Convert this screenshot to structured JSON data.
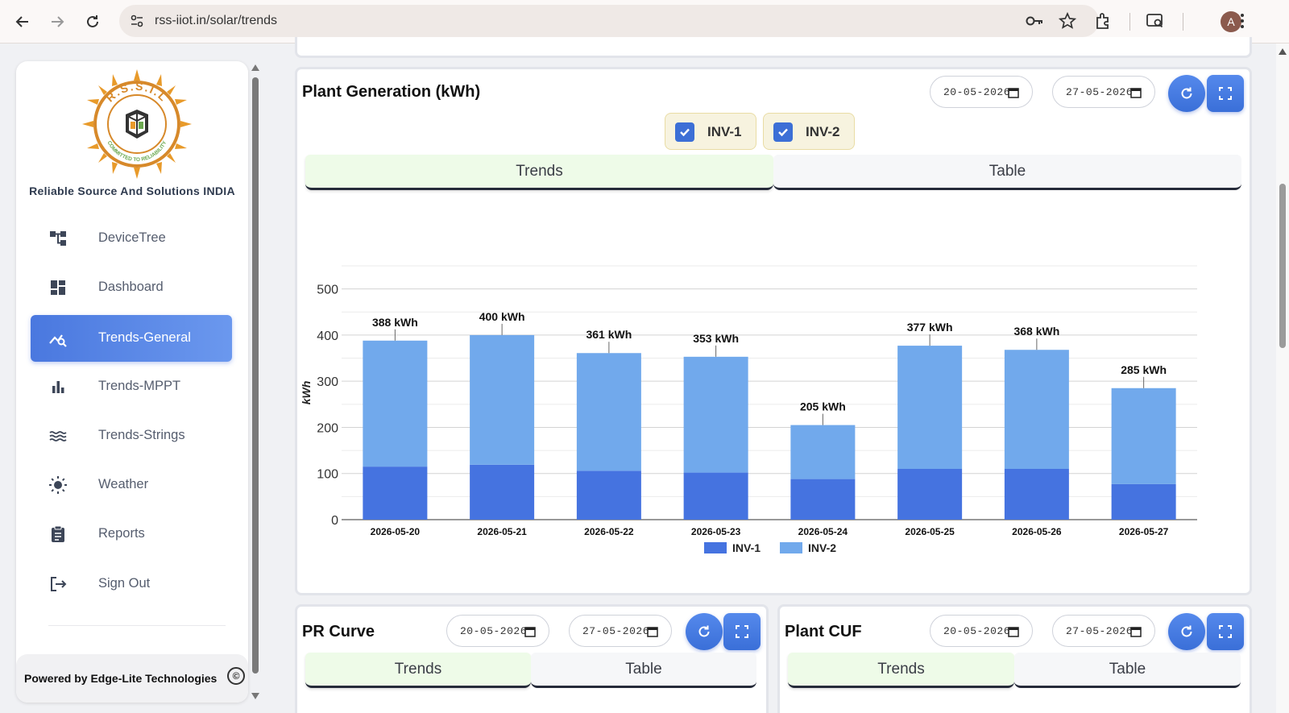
{
  "browser": {
    "url": "rss-iiot.in/solar/trends",
    "profile_initial": "A"
  },
  "sidebar": {
    "company": "Reliable Source And Solutions INDIA",
    "logo_text": "R.S.S.I.L",
    "logo_tagline": "COMMITTED TO RELIABILITY",
    "items": [
      {
        "label": "DeviceTree",
        "icon": "device-tree-icon"
      },
      {
        "label": "Dashboard",
        "icon": "dashboard-icon"
      },
      {
        "label": "Trends-General",
        "icon": "trends-general-icon",
        "active": true
      },
      {
        "label": "Trends-MPPT",
        "icon": "bar-chart-icon"
      },
      {
        "label": "Trends-Strings",
        "icon": "waves-icon"
      },
      {
        "label": "Weather",
        "icon": "sun-icon"
      },
      {
        "label": "Reports",
        "icon": "clipboard-icon"
      },
      {
        "label": "Sign Out",
        "icon": "logout-icon"
      }
    ],
    "powered_by": "Powered by Edge-Lite Technologies",
    "copyright_symbol": "©"
  },
  "generation_card": {
    "title": "Plant Generation (kWh)",
    "start_date": "20-05-2026",
    "end_date": "27-05-2026",
    "filters": [
      {
        "label": "INV-1",
        "checked": true
      },
      {
        "label": "INV-2",
        "checked": true
      }
    ],
    "tabs": [
      "Trends",
      "Table"
    ],
    "active_tab": "Trends"
  },
  "pr_card": {
    "title": "PR Curve",
    "start_date": "20-05-2026",
    "end_date": "27-05-2026",
    "tabs": [
      "Trends",
      "Table"
    ]
  },
  "cuf_card": {
    "title": "Plant CUF",
    "start_date": "20-05-2026",
    "end_date": "27-05-2026",
    "tabs": [
      "Trends",
      "Table"
    ]
  },
  "colors": {
    "inv1": "#4573e0",
    "inv2": "#71a9ec",
    "accent": "#4a78df"
  },
  "chart_data": {
    "type": "bar",
    "stacked": true,
    "categories": [
      "2026-05-20",
      "2026-05-21",
      "2026-05-22",
      "2026-05-23",
      "2026-05-24",
      "2026-05-25",
      "2026-05-26",
      "2026-05-27"
    ],
    "series": [
      {
        "name": "INV-1",
        "values": [
          115,
          119,
          106,
          102,
          88,
          110,
          110,
          77
        ]
      },
      {
        "name": "INV-2",
        "values": [
          273,
          281,
          255,
          251,
          117,
          267,
          258,
          208
        ]
      }
    ],
    "totals": [
      388,
      400,
      361,
      353,
      205,
      377,
      368,
      285
    ],
    "total_labels": [
      "388 kWh",
      "400 kWh",
      "361 kWh",
      "353 kWh",
      "205 kWh",
      "377 kWh",
      "368 kWh",
      "285 kWh"
    ],
    "ylabel": "kWh",
    "ylim": [
      0,
      550
    ],
    "yticks": [
      0,
      100,
      200,
      300,
      400,
      500
    ],
    "grid": true,
    "legend": "bottom"
  }
}
